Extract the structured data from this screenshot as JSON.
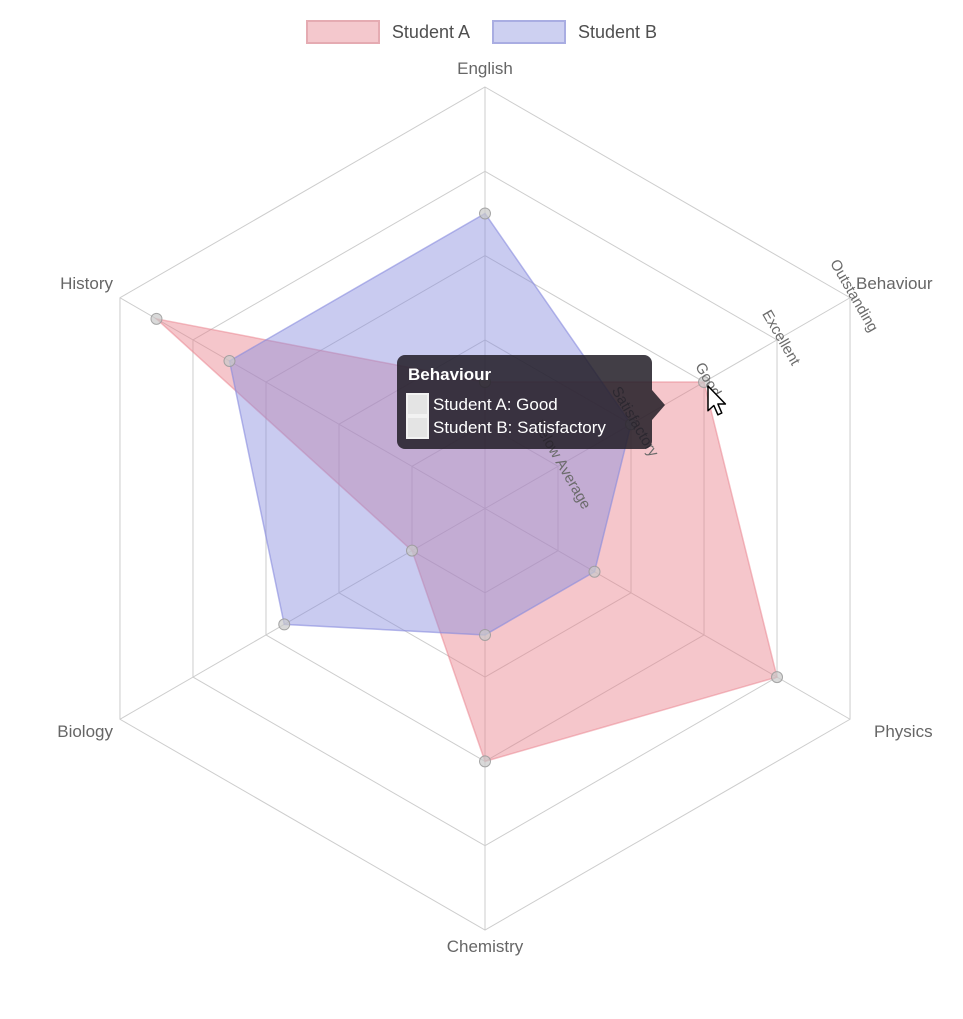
{
  "chart": {
    "legend": {
      "items": [
        {
          "label": "Student A",
          "swatch_fill": "#f4c8cd",
          "swatch_border": "#e5abb2"
        },
        {
          "label": "Student B",
          "swatch_fill": "#cdd0f1",
          "swatch_border": "#a9ade2"
        }
      ]
    },
    "tooltip": {
      "title": "Behaviour",
      "rows": [
        {
          "label": "Student A: Good",
          "swatch_color": "#e4e4e4"
        },
        {
          "label": "Student B: Satisfactory",
          "swatch_color": "#e4e4e4"
        }
      ],
      "background": "rgba(33,28,38,0.85)",
      "text_color": "#ffffff"
    }
  },
  "chart_data": {
    "type": "radar",
    "categories": [
      "English",
      "Behaviour",
      "Physics",
      "Chemistry",
      "Biology",
      "History"
    ],
    "series": [
      {
        "name": "Student A",
        "values": [
          3,
          6,
          8,
          6,
          2,
          9
        ],
        "color": "#e9808b",
        "fill_opacity": 0.45,
        "line_opacity": 0.5
      },
      {
        "name": "Student B",
        "values": [
          7,
          4,
          3,
          3,
          5.5,
          7
        ],
        "color": "#878bde",
        "fill_opacity": 0.45,
        "line_opacity": 0.6
      }
    ],
    "value_axis": {
      "min": 0,
      "max": 10,
      "tick_values": [
        2,
        4,
        6,
        8,
        10
      ],
      "tick_labels": [
        "Below Average",
        "Satisfactory",
        "Good",
        "Excellent",
        "Outstanding"
      ],
      "tick_label_axis": "Behaviour",
      "tick_label_rotation": 60
    },
    "grid": {
      "shape": "polygon",
      "rings": 5,
      "color": "#cdcdcd"
    },
    "marker": {
      "fill": "#c9c9c9",
      "stroke": "#9a9a9a",
      "radius": 5.5
    },
    "hovered_category": "Behaviour",
    "legend_position": "top"
  }
}
